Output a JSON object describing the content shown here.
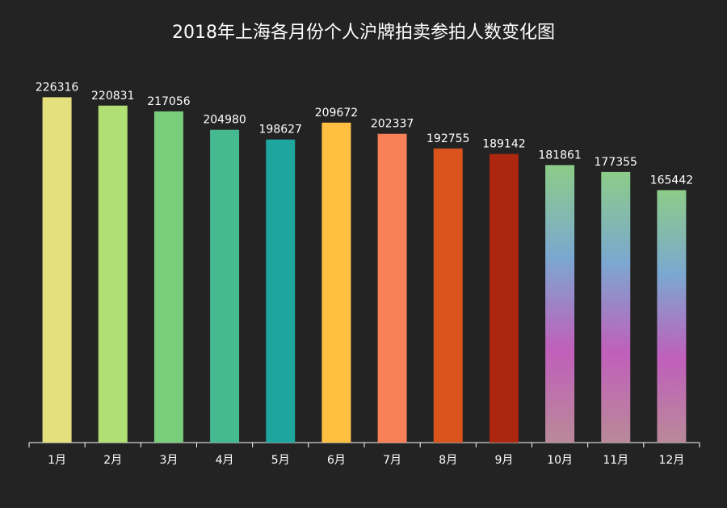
{
  "chart_data": {
    "type": "bar",
    "title": "2018年上海各月份个人沪牌拍卖参拍人数变化图",
    "categories": [
      "1月",
      "2月",
      "3月",
      "4月",
      "5月",
      "6月",
      "7月",
      "8月",
      "9月",
      "10月",
      "11月",
      "12月"
    ],
    "values": [
      226316,
      220831,
      217056,
      204980,
      198627,
      209672,
      202337,
      192755,
      189142,
      181861,
      177355,
      165442
    ],
    "ylim": [
      0,
      235000
    ],
    "grid": false,
    "legend": "none",
    "colors": [
      "#e5e07e",
      "#b0df73",
      "#79ce7b",
      "#45b98f",
      "#1da59e",
      "#ffbf40",
      "#f98057",
      "#d8541c",
      "#ad2610",
      "gradient",
      "gradient",
      "gradient"
    ],
    "gradient_stops": [
      "#8ccc88",
      "#7ba8d0",
      "#c05fbb",
      "#b98a98"
    ],
    "background": "#232323"
  }
}
